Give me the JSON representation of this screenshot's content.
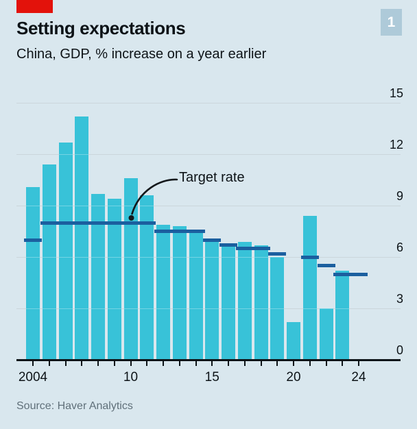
{
  "header": {
    "title": "Setting expectations",
    "subtitle": "China, GDP, % increase on a year earlier",
    "figure_badge": "1"
  },
  "annotation": {
    "label": "Target rate"
  },
  "footer": {
    "source": "Source: Haver Analytics"
  },
  "colors": {
    "background": "#d9e7ee",
    "red_tab": "#e3120b",
    "badge_bg": "#aecad9",
    "bar": "#38c2d8",
    "target": "#1b5f9f",
    "gridline": "#b5c4cc",
    "axis": "#0d1317",
    "text": "#0d1317",
    "source_text": "#60707a"
  },
  "chart_data": {
    "type": "bar",
    "title": "Setting expectations",
    "subtitle": "China, GDP, % increase on a year earlier",
    "xlabel": "",
    "ylabel": "% increase on a year earlier",
    "ylim": [
      0,
      15
    ],
    "yticks": [
      0,
      3,
      6,
      9,
      12,
      15
    ],
    "grid": "horizontal",
    "legend_position": "annotation",
    "x": [
      2004,
      2005,
      2006,
      2007,
      2008,
      2009,
      2010,
      2011,
      2012,
      2013,
      2014,
      2015,
      2016,
      2017,
      2018,
      2019,
      2020,
      2021,
      2022,
      2023,
      2024
    ],
    "x_tick_labels": [
      {
        "year": 2004,
        "label": "2004"
      },
      {
        "year": 2010,
        "label": "10"
      },
      {
        "year": 2015,
        "label": "15"
      },
      {
        "year": 2020,
        "label": "20"
      },
      {
        "year": 2024,
        "label": "24"
      }
    ],
    "series": [
      {
        "name": "GDP, % increase on a year earlier",
        "type": "bar",
        "values": [
          10.1,
          11.4,
          12.7,
          14.2,
          9.7,
          9.4,
          10.6,
          9.6,
          7.9,
          7.8,
          7.4,
          7.0,
          6.8,
          6.9,
          6.7,
          6.0,
          2.2,
          8.4,
          3.0,
          5.2,
          null
        ]
      },
      {
        "name": "Target rate",
        "type": "level-segments",
        "segments": [
          {
            "from": 2004,
            "to": 2004,
            "value": 7.0
          },
          {
            "from": 2005,
            "to": 2011,
            "value": 8.0
          },
          {
            "from": 2012,
            "to": 2014,
            "value": 7.5
          },
          {
            "from": 2015,
            "to": 2015,
            "value": 7.0
          },
          {
            "from": 2016,
            "to": 2016,
            "value": 6.7
          },
          {
            "from": 2017,
            "to": 2018,
            "value": 6.5
          },
          {
            "from": 2019,
            "to": 2019,
            "value": 6.2
          },
          {
            "from": 2021,
            "to": 2021,
            "value": 6.0
          },
          {
            "from": 2022,
            "to": 2022,
            "value": 5.5
          },
          {
            "from": 2023,
            "to": 2024,
            "value": 5.0
          }
        ]
      }
    ],
    "annotations": [
      {
        "text": "Target rate",
        "points_to": {
          "year": 2010,
          "value": 8.0
        }
      }
    ]
  }
}
